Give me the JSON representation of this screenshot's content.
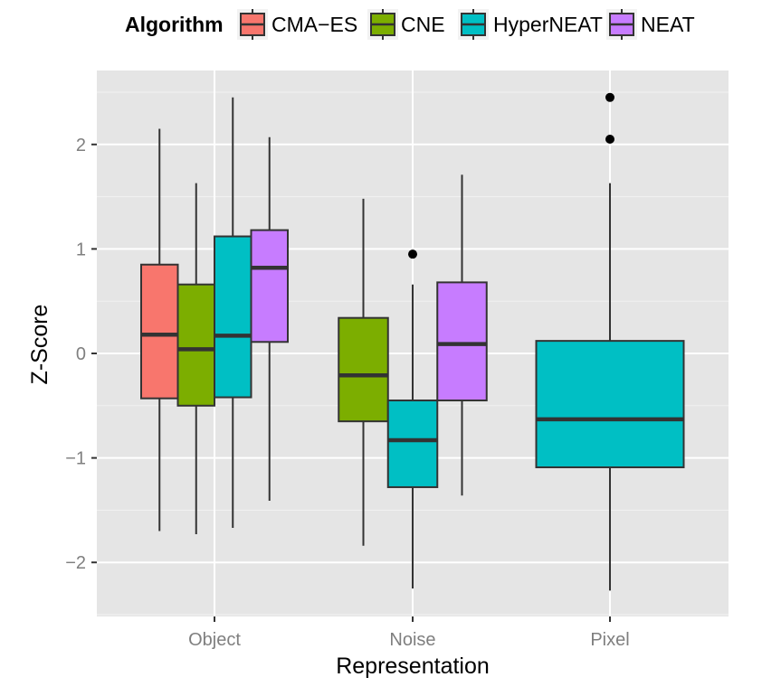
{
  "chart_data": {
    "type": "boxplot",
    "xlabel": "Representation",
    "ylabel": "Z-Score",
    "ylim": [
      -2.5,
      2.7
    ],
    "yticks": [
      -2,
      -1,
      0,
      1,
      2
    ],
    "y_tick_labels": [
      "−2",
      "−1",
      "0",
      "1",
      "2"
    ],
    "categories": [
      "Object",
      "Noise",
      "Pixel"
    ],
    "grid": true,
    "legend": {
      "title": "Algorithm",
      "position": "top",
      "entries": [
        {
          "name": "CMA−ES",
          "color": "#F8766D"
        },
        {
          "name": "CNE",
          "color": "#7CAE00"
        },
        {
          "name": "HyperNEAT",
          "color": "#00BFC4"
        },
        {
          "name": "NEAT",
          "color": "#C77CFF"
        }
      ]
    },
    "groups": [
      {
        "category": "Object",
        "algorithm": "CMA−ES",
        "color": "#F8766D",
        "min": -1.7,
        "q1": -0.43,
        "median": 0.18,
        "q3": 0.85,
        "max": 2.15,
        "outliers": []
      },
      {
        "category": "Object",
        "algorithm": "CNE",
        "color": "#7CAE00",
        "min": -1.73,
        "q1": -0.5,
        "median": 0.04,
        "q3": 0.66,
        "max": 1.63,
        "outliers": []
      },
      {
        "category": "Object",
        "algorithm": "HyperNEAT",
        "color": "#00BFC4",
        "min": -1.67,
        "q1": -0.42,
        "median": 0.17,
        "q3": 1.12,
        "max": 2.45,
        "outliers": []
      },
      {
        "category": "Object",
        "algorithm": "NEAT",
        "color": "#C77CFF",
        "min": -1.41,
        "q1": 0.11,
        "median": 0.82,
        "q3": 1.18,
        "max": 2.07,
        "outliers": []
      },
      {
        "category": "Noise",
        "algorithm": "CNE",
        "color": "#7CAE00",
        "min": -1.84,
        "q1": -0.65,
        "median": -0.21,
        "q3": 0.34,
        "max": 1.48,
        "outliers": []
      },
      {
        "category": "Noise",
        "algorithm": "HyperNEAT",
        "color": "#00BFC4",
        "min": -2.25,
        "q1": -1.28,
        "median": -0.83,
        "q3": -0.45,
        "max": 0.66,
        "outliers": [
          0.95
        ]
      },
      {
        "category": "Noise",
        "algorithm": "NEAT",
        "color": "#C77CFF",
        "min": -1.36,
        "q1": -0.45,
        "median": 0.09,
        "q3": 0.68,
        "max": 1.71,
        "outliers": []
      },
      {
        "category": "Pixel",
        "algorithm": "HyperNEAT",
        "color": "#00BFC4",
        "min": -2.27,
        "q1": -1.09,
        "median": -0.63,
        "q3": 0.12,
        "max": 1.63,
        "outliers": [
          2.05,
          2.45
        ]
      }
    ]
  }
}
